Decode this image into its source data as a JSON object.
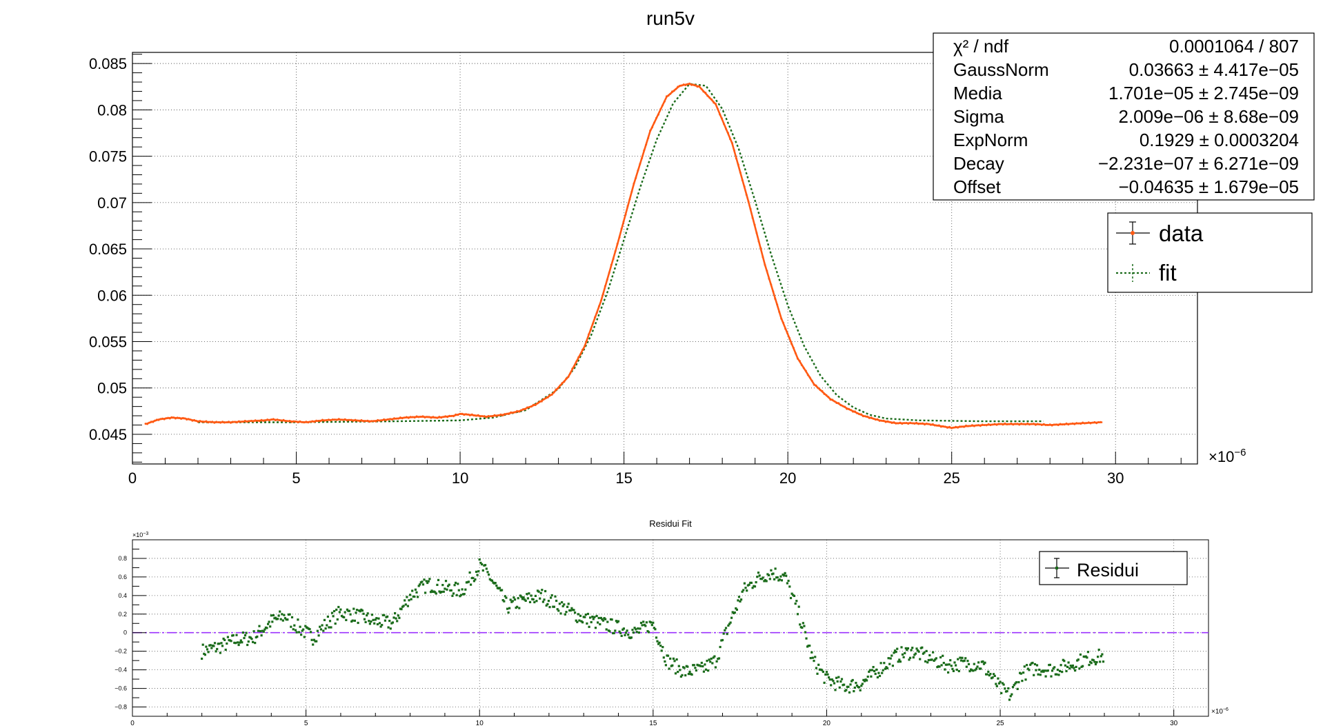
{
  "chart_data": [
    {
      "type": "scatter",
      "title": "run5v",
      "xlabel": "",
      "ylabel": "",
      "x_exponent": "×10",
      "x_exponent_power": "−6",
      "xlim": [
        0,
        32.5
      ],
      "ylim": [
        0.0418,
        0.0862
      ],
      "grid": true,
      "x_ticks": [
        0,
        5,
        10,
        15,
        20,
        25,
        30
      ],
      "x_tick_labels": [
        "0",
        "5",
        "10",
        "15",
        "20",
        "25",
        "30"
      ],
      "y_ticks": [
        0.045,
        0.05,
        0.055,
        0.06,
        0.065,
        0.07,
        0.075,
        0.08,
        0.085
      ],
      "y_tick_labels": [
        "0.045",
        "0.05",
        "0.055",
        "0.06",
        "0.065",
        "0.07",
        "0.075",
        "0.08",
        "0.085"
      ],
      "data_color": "#ff5a14",
      "fit_color": "#1a6b1a",
      "data_points": [
        [
          0.4,
          0.0461
        ],
        [
          0.8,
          0.0466
        ],
        [
          1.2,
          0.0468
        ],
        [
          1.6,
          0.0467
        ],
        [
          2.0,
          0.0464
        ],
        [
          2.5,
          0.0463
        ],
        [
          3.0,
          0.0463
        ],
        [
          3.5,
          0.0464
        ],
        [
          4.0,
          0.0465
        ],
        [
          4.3,
          0.0466
        ],
        [
          4.8,
          0.0464
        ],
        [
          5.3,
          0.0463
        ],
        [
          5.8,
          0.0465
        ],
        [
          6.3,
          0.0466
        ],
        [
          6.8,
          0.0465
        ],
        [
          7.3,
          0.0464
        ],
        [
          7.8,
          0.0466
        ],
        [
          8.3,
          0.0468
        ],
        [
          8.8,
          0.0469
        ],
        [
          9.3,
          0.0468
        ],
        [
          9.8,
          0.047
        ],
        [
          10.0,
          0.0472
        ],
        [
          10.3,
          0.0471
        ],
        [
          10.8,
          0.0469
        ],
        [
          11.3,
          0.0471
        ],
        [
          11.8,
          0.0475
        ],
        [
          12.3,
          0.0482
        ],
        [
          12.8,
          0.0493
        ],
        [
          13.3,
          0.0512
        ],
        [
          13.8,
          0.0545
        ],
        [
          14.3,
          0.0594
        ],
        [
          14.8,
          0.0655
        ],
        [
          15.3,
          0.072
        ],
        [
          15.8,
          0.0777
        ],
        [
          16.3,
          0.0814
        ],
        [
          16.7,
          0.0826
        ],
        [
          17.0,
          0.0828
        ],
        [
          17.3,
          0.0825
        ],
        [
          17.8,
          0.0806
        ],
        [
          18.3,
          0.0764
        ],
        [
          18.8,
          0.0701
        ],
        [
          19.3,
          0.0633
        ],
        [
          19.8,
          0.0575
        ],
        [
          20.3,
          0.0532
        ],
        [
          20.8,
          0.0504
        ],
        [
          21.3,
          0.0488
        ],
        [
          21.8,
          0.0478
        ],
        [
          22.3,
          0.047
        ],
        [
          22.8,
          0.0465
        ],
        [
          23.3,
          0.0462
        ],
        [
          23.8,
          0.0462
        ],
        [
          24.3,
          0.0461
        ],
        [
          24.8,
          0.0458
        ],
        [
          25.0,
          0.0457
        ],
        [
          25.5,
          0.0459
        ],
        [
          26.0,
          0.046
        ],
        [
          26.5,
          0.0461
        ],
        [
          27.0,
          0.0461
        ],
        [
          27.5,
          0.0461
        ],
        [
          28.0,
          0.046
        ],
        [
          28.5,
          0.0461
        ],
        [
          29.0,
          0.0462
        ],
        [
          29.6,
          0.0463
        ]
      ],
      "fit_points": [
        [
          2.0,
          0.0463
        ],
        [
          5.0,
          0.0463
        ],
        [
          8.0,
          0.0464
        ],
        [
          10.0,
          0.0465
        ],
        [
          11.0,
          0.0468
        ],
        [
          12.0,
          0.0476
        ],
        [
          13.0,
          0.0499
        ],
        [
          13.5,
          0.0522
        ],
        [
          14.0,
          0.0557
        ],
        [
          14.5,
          0.0604
        ],
        [
          15.0,
          0.066
        ],
        [
          15.5,
          0.0717
        ],
        [
          16.0,
          0.0768
        ],
        [
          16.5,
          0.0807
        ],
        [
          17.0,
          0.0828
        ],
        [
          17.5,
          0.0826
        ],
        [
          18.0,
          0.0801
        ],
        [
          18.5,
          0.0758
        ],
        [
          19.0,
          0.0702
        ],
        [
          19.5,
          0.0643
        ],
        [
          20.0,
          0.0589
        ],
        [
          20.5,
          0.0545
        ],
        [
          21.0,
          0.0513
        ],
        [
          21.5,
          0.0492
        ],
        [
          22.0,
          0.0479
        ],
        [
          22.5,
          0.0471
        ],
        [
          23.0,
          0.0467
        ],
        [
          24.0,
          0.0465
        ],
        [
          26.0,
          0.0464
        ],
        [
          27.8,
          0.0464
        ]
      ],
      "stats": [
        {
          "name": "χ² / ndf",
          "value": "0.0001064 / 807"
        },
        {
          "name": "GaussNorm",
          "value": "0.03663 ± 4.417e−05"
        },
        {
          "name": "Media",
          "value": "1.701e−05 ± 2.745e−09"
        },
        {
          "name": "Sigma",
          "value": "2.009e−06 ± 8.68e−09"
        },
        {
          "name": "ExpNorm",
          "value": "0.1929 ± 0.0003204"
        },
        {
          "name": "Decay",
          "value": "−2.231e−07 ± 6.271e−09"
        },
        {
          "name": "Offset",
          "value": "−0.04635 ± 1.679e−05"
        }
      ],
      "legend": {
        "placement": "top-right",
        "entries": [
          {
            "label": "data",
            "style": "marker-errorbar"
          },
          {
            "label": "fit",
            "style": "dotted-line"
          }
        ]
      }
    },
    {
      "type": "scatter",
      "title": "Residui Fit",
      "xlabel": "",
      "ylabel": "",
      "x_exponent": "×10",
      "x_exponent_power": "−6",
      "y_exponent": "×10",
      "y_exponent_power": "−3",
      "xlim": [
        0,
        31
      ],
      "ylim": [
        -0.9,
        1.0
      ],
      "grid": true,
      "x_ticks": [
        0,
        5,
        10,
        15,
        20,
        25,
        30
      ],
      "x_tick_labels": [
        "0",
        "5",
        "10",
        "15",
        "20",
        "25",
        "30"
      ],
      "y_ticks": [
        -0.8,
        -0.6,
        -0.4,
        -0.2,
        0,
        0.2,
        0.4,
        0.6,
        0.8
      ],
      "y_tick_labels": [
        "−0.8",
        "−0.6",
        "−0.4",
        "−0.2",
        "0",
        "0.2",
        "0.4",
        "0.6",
        "0.8"
      ],
      "zero_line_color": "#9b30ff",
      "marker_color": "#1a6b1a",
      "trend": [
        [
          2.0,
          -0.2
        ],
        [
          2.5,
          -0.15
        ],
        [
          3.0,
          -0.08
        ],
        [
          3.5,
          -0.05
        ],
        [
          4.0,
          0.12
        ],
        [
          4.4,
          0.18
        ],
        [
          4.8,
          0.05
        ],
        [
          5.2,
          -0.05
        ],
        [
          5.6,
          0.1
        ],
        [
          6.0,
          0.22
        ],
        [
          6.5,
          0.18
        ],
        [
          7.0,
          0.12
        ],
        [
          7.5,
          0.1
        ],
        [
          8.0,
          0.4
        ],
        [
          8.5,
          0.52
        ],
        [
          9.0,
          0.48
        ],
        [
          9.5,
          0.45
        ],
        [
          10.0,
          0.72
        ],
        [
          10.3,
          0.6
        ],
        [
          10.8,
          0.28
        ],
        [
          11.3,
          0.35
        ],
        [
          11.8,
          0.4
        ],
        [
          12.5,
          0.25
        ],
        [
          13.0,
          0.15
        ],
        [
          13.5,
          0.1
        ],
        [
          14.0,
          0.05
        ],
        [
          14.5,
          0.0
        ],
        [
          15.0,
          0.1
        ],
        [
          15.4,
          -0.3
        ],
        [
          15.9,
          -0.42
        ],
        [
          16.4,
          -0.4
        ],
        [
          16.8,
          -0.3
        ],
        [
          17.2,
          0.1
        ],
        [
          17.6,
          0.45
        ],
        [
          18.0,
          0.58
        ],
        [
          18.4,
          0.65
        ],
        [
          18.8,
          0.6
        ],
        [
          19.2,
          0.2
        ],
        [
          19.6,
          -0.3
        ],
        [
          20.0,
          -0.5
        ],
        [
          20.5,
          -0.58
        ],
        [
          21.0,
          -0.55
        ],
        [
          21.5,
          -0.4
        ],
        [
          22.0,
          -0.25
        ],
        [
          22.5,
          -0.2
        ],
        [
          23.0,
          -0.28
        ],
        [
          23.5,
          -0.35
        ],
        [
          24.0,
          -0.33
        ],
        [
          24.5,
          -0.35
        ],
        [
          25.0,
          -0.6
        ],
        [
          25.3,
          -0.68
        ],
        [
          25.6,
          -0.45
        ],
        [
          26.0,
          -0.38
        ],
        [
          26.5,
          -0.4
        ],
        [
          27.0,
          -0.35
        ],
        [
          27.5,
          -0.28
        ],
        [
          28.0,
          -0.25
        ]
      ],
      "legend": {
        "placement": "top-right",
        "entries": [
          {
            "label": "Residui",
            "style": "marker-errorbar"
          }
        ]
      }
    }
  ]
}
